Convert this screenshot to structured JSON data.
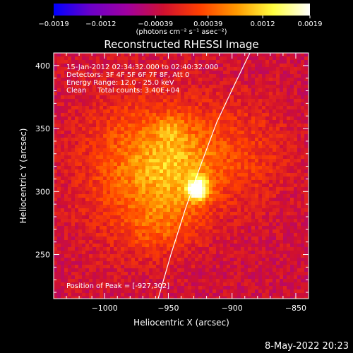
{
  "chart_data": {
    "type": "heatmap",
    "title": "Reconstructed RHESSI Image",
    "xlabel": "Heliocentric X (arcsec)",
    "ylabel": "Heliocentric Y (arcsec)",
    "xlim": [
      -1040,
      -840
    ],
    "ylim": [
      215,
      410
    ],
    "x_ticks": [
      -1000,
      -950,
      -900,
      -850
    ],
    "x_tick_labels": [
      "−1000",
      "−950",
      "−900",
      "−850"
    ],
    "y_ticks": [
      250,
      300,
      350,
      400
    ],
    "y_tick_labels": [
      "250",
      "300",
      "350",
      "400"
    ],
    "colorbar": {
      "range": [
        -0.0019,
        0.0019
      ],
      "ticks": [
        -0.0019,
        -0.0012,
        -0.00039,
        0.00039,
        0.0012,
        0.0019
      ],
      "tick_labels": [
        "−0.0019",
        "−0.0012",
        "−0.00039",
        "0.00039",
        "0.0012",
        "0.0019"
      ],
      "units_label": "(photons cm⁻² s⁻¹ asec⁻²)",
      "colors": [
        "#0000ff",
        "#6a00c8",
        "#a000a0",
        "#d01030",
        "#ff4000",
        "#ff9a00",
        "#ffff40",
        "#ffffff"
      ]
    },
    "annotations": [
      "15-Jan-2012 02:34:32.000 to 02:40:32.000",
      "Detectors: 3F 4F 5F 6F 7F 8F, Att 0",
      "Energy Range: 12.0 - 25.0 keV",
      "Clean     Total counts: 3.40E+04"
    ],
    "peak_label": "Position of Peak = [-927,302]",
    "peak": {
      "x": -927,
      "y": 302
    },
    "limb_curve": [
      [
        -958,
        215
      ],
      [
        -948,
        250
      ],
      [
        -937,
        285
      ],
      [
        -925,
        320
      ],
      [
        -912,
        355
      ],
      [
        -898,
        385
      ],
      [
        -886,
        410
      ]
    ],
    "sources": [
      {
        "x": -927,
        "y": 302,
        "sx": 6,
        "sy": 6,
        "amp": 0.0019
      },
      {
        "x": -945,
        "y": 318,
        "sx": 22,
        "sy": 28,
        "amp": 0.0009
      },
      {
        "x": -980,
        "y": 320,
        "sx": 28,
        "sy": 40,
        "amp": 0.0007
      },
      {
        "x": -900,
        "y": 330,
        "sx": 30,
        "sy": 30,
        "amp": 0.0005
      },
      {
        "x": -948,
        "y": 350,
        "sx": 8,
        "sy": 8,
        "amp": 0.0004
      },
      {
        "x": -955,
        "y": 270,
        "sx": 20,
        "sy": 15,
        "amp": 0.0004
      }
    ],
    "background_level": -0.0003
  },
  "footer_timestamp": "8-May-2022 20:23"
}
